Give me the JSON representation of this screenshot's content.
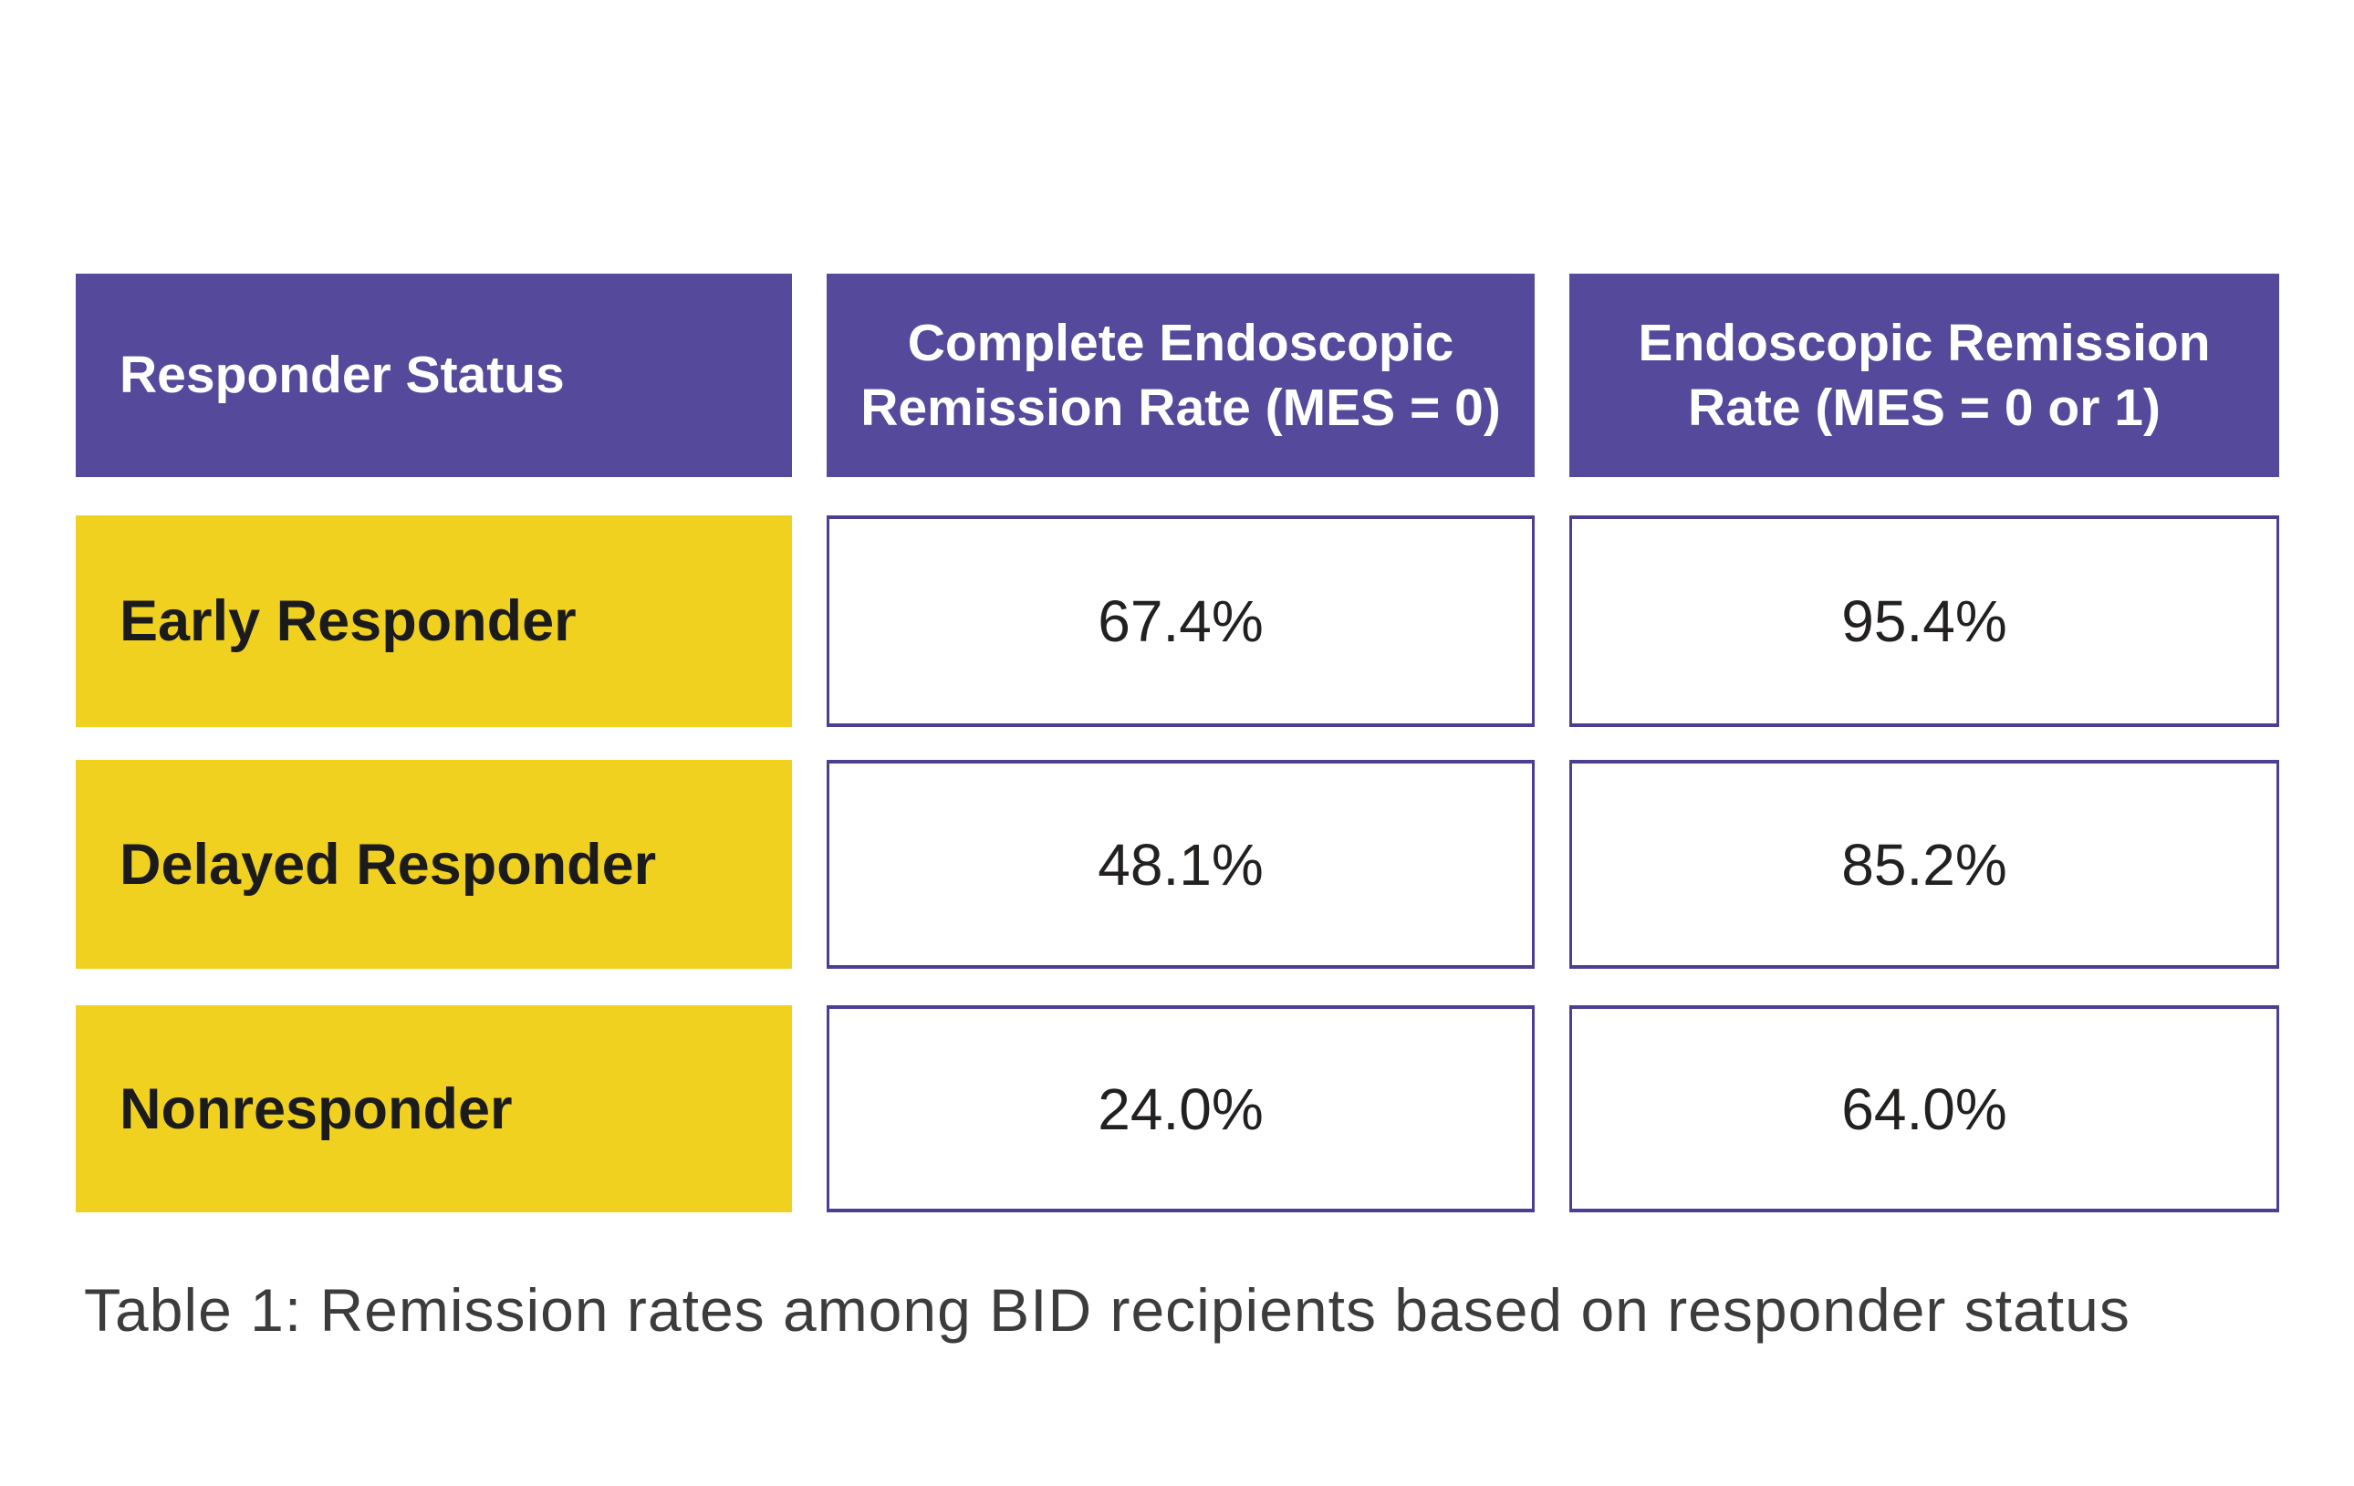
{
  "page": {
    "background": "#FFFFFF"
  },
  "colors": {
    "page_bg": "#FFFFFF",
    "header_bg": "#55499B",
    "header_text": "#FFFFFF",
    "label_bg": "#F0D120",
    "label_text": "#1B1B1B",
    "cell_border": "#4A3F93",
    "value_text": "#232020",
    "caption_text": "#3C3C3C"
  },
  "table": {
    "header": [
      {
        "lines": [
          "Responder Status"
        ]
      },
      {
        "lines": [
          "Complete Endoscopic",
          "Remission Rate (MES = 0)"
        ]
      },
      {
        "lines": [
          "Endoscopic Remission",
          "Rate (MES = 0 or 1)"
        ]
      }
    ],
    "rows": [
      {
        "label": "Early Responder",
        "complete_endoscopic_remission_rate": "67.4%",
        "endoscopic_remission_rate": "95.4%"
      },
      {
        "label": "Delayed Responder",
        "complete_endoscopic_remission_rate": "48.1%",
        "endoscopic_remission_rate": "85.2%"
      },
      {
        "label": "Nonresponder",
        "complete_endoscopic_remission_rate": "24.0%",
        "endoscopic_remission_rate": "64.0%"
      }
    ],
    "caption": "Table 1: Remission rates among BID recipients based on responder status"
  },
  "chart_data": {
    "type": "table",
    "title": "Table 1: Remission rates among BID recipients based on responder status",
    "columns": [
      "Responder Status",
      "Complete Endoscopic Remission Rate (MES = 0)",
      "Endoscopic Remission Rate (MES = 0 or 1)"
    ],
    "categories": [
      "Early Responder",
      "Delayed Responder",
      "Nonresponder"
    ],
    "rows": [
      [
        "Early Responder",
        "67.4%",
        "95.4%"
      ],
      [
        "Delayed Responder",
        "48.1%",
        "85.2%"
      ],
      [
        "Nonresponder",
        "24.0%",
        "64.0%"
      ]
    ],
    "series": [
      {
        "name": "Complete Endoscopic Remission Rate (MES = 0)",
        "values": [
          67.4,
          48.1,
          24.0
        ]
      },
      {
        "name": "Endoscopic Remission Rate (MES = 0 or 1)",
        "values": [
          95.4,
          85.2,
          64.0
        ]
      }
    ],
    "unit": "%"
  }
}
